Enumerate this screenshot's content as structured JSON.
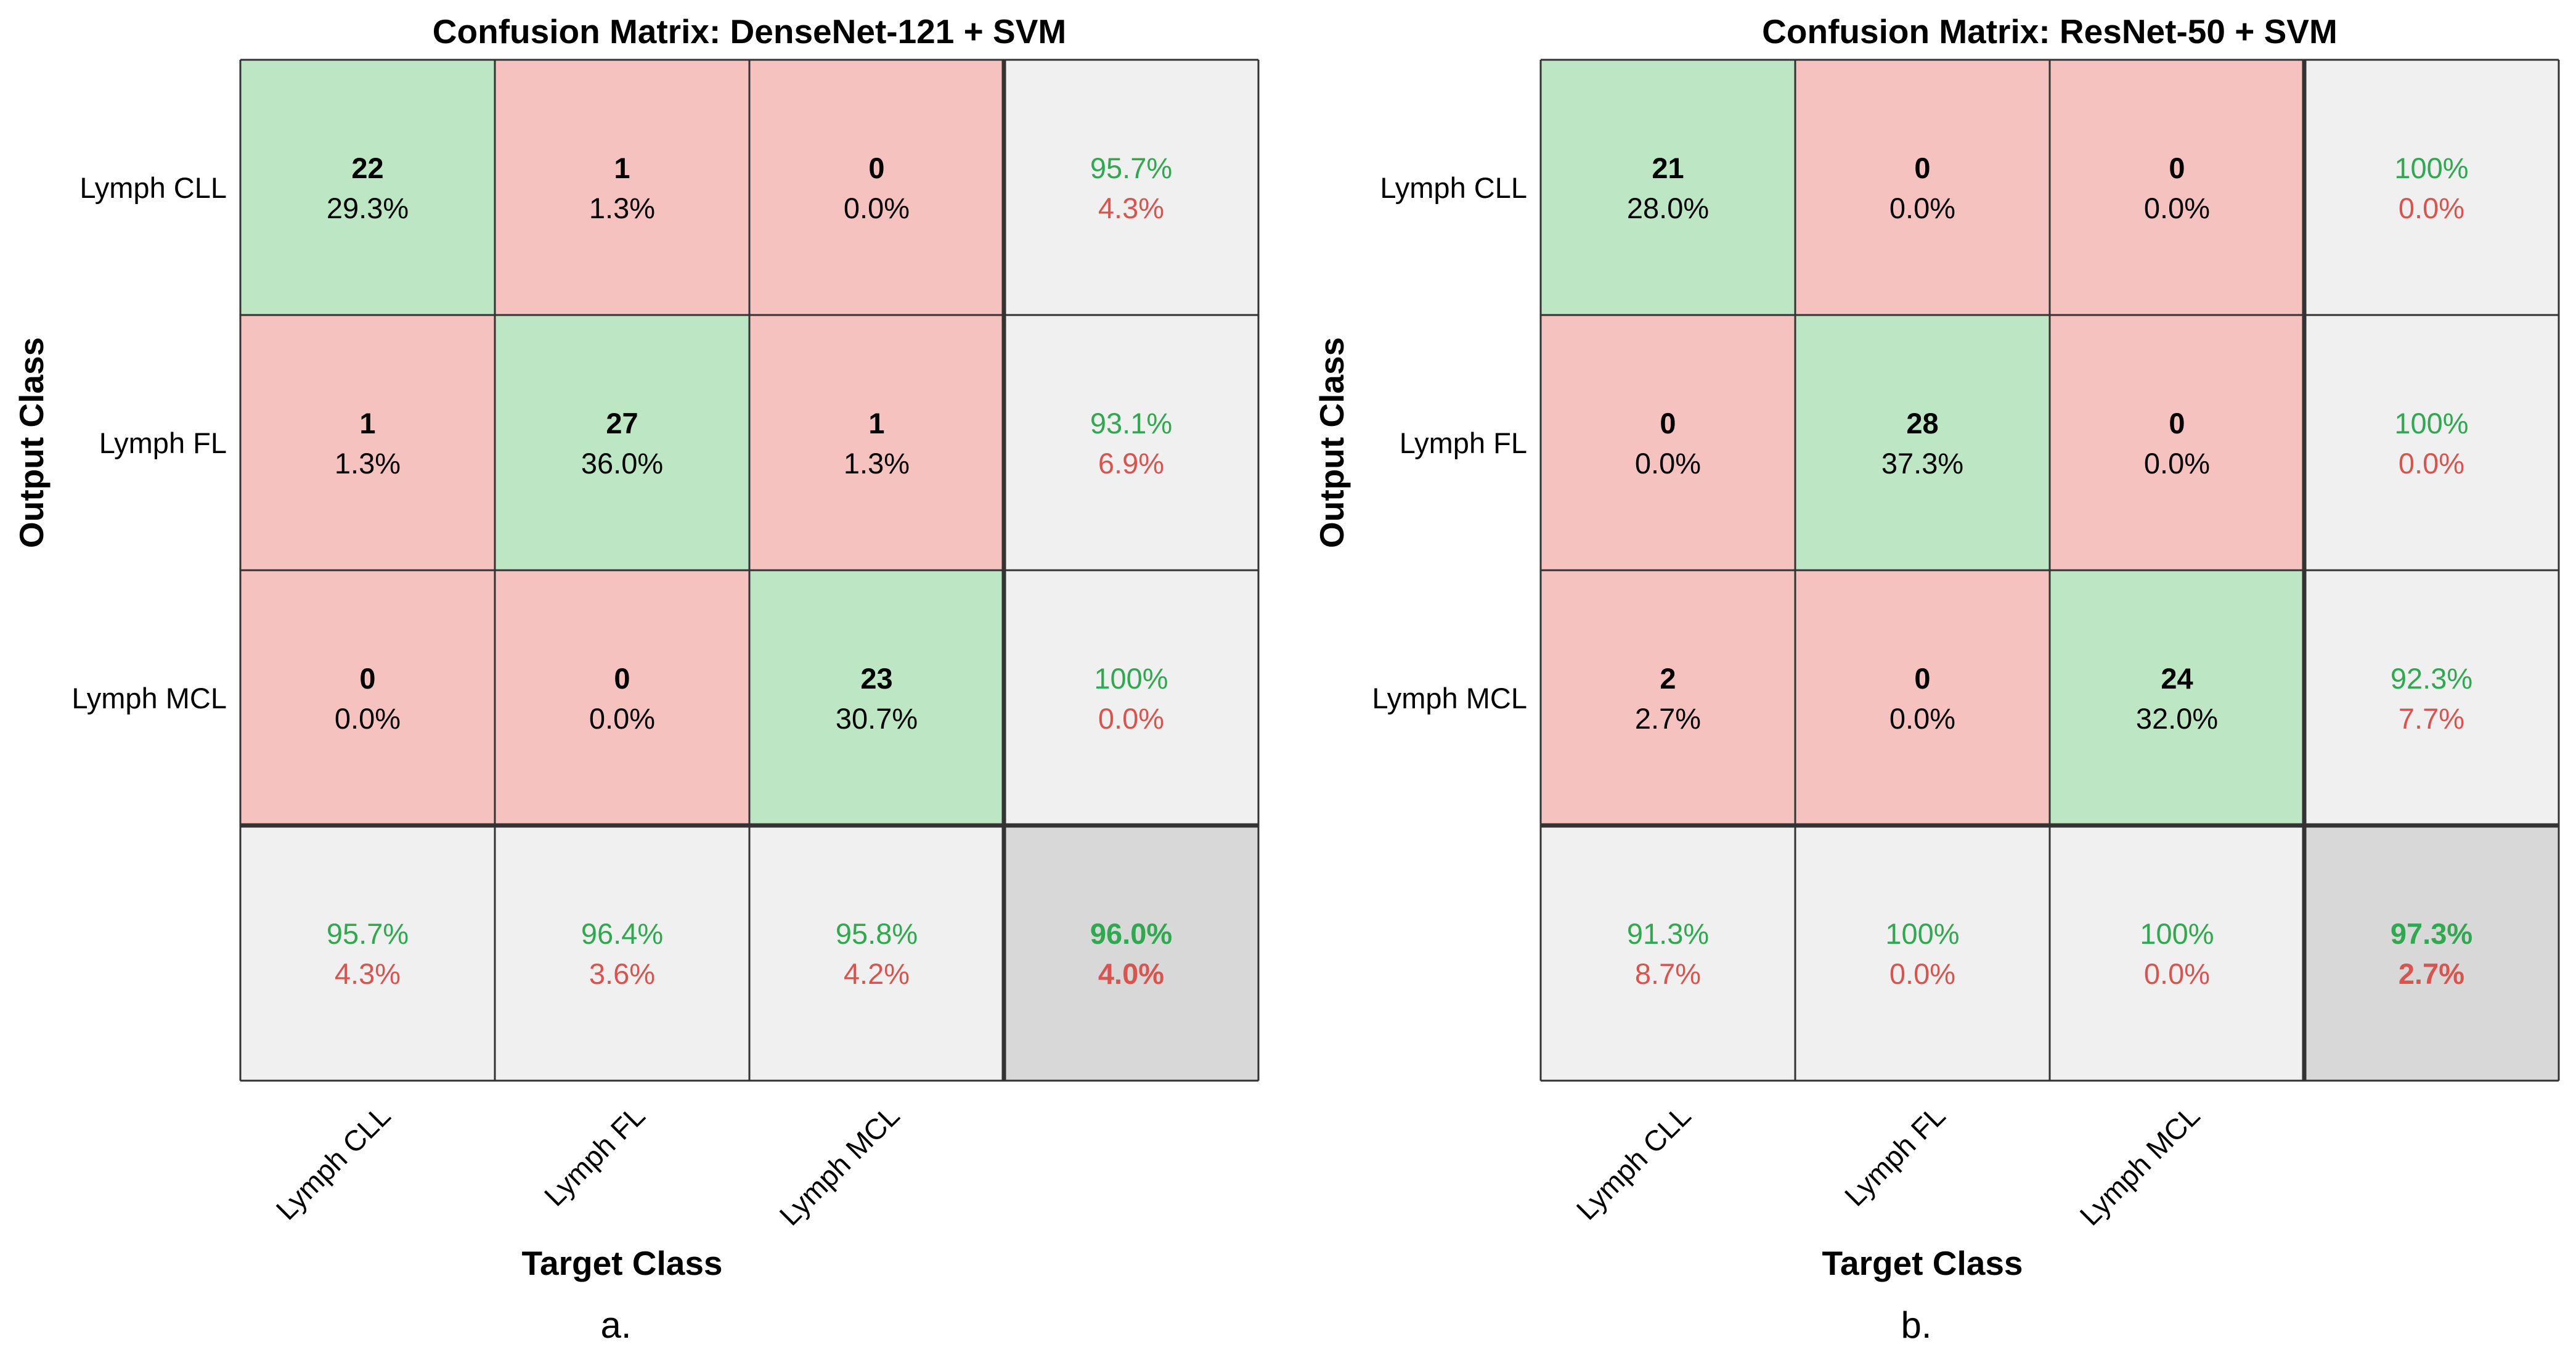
{
  "chart_data": [
    {
      "type": "heatmap",
      "panel_label": "a.",
      "title": "Confusion Matrix: DenseNet-121 + SVM",
      "xlabel": "Target Class",
      "ylabel": "Output Class",
      "classes": [
        "Lymph CLL",
        "Lymph FL",
        "Lymph MCL"
      ],
      "counts": [
        [
          22,
          1,
          0
        ],
        [
          1,
          27,
          1
        ],
        [
          0,
          0,
          23
        ]
      ],
      "percents": [
        [
          "29.3%",
          "1.3%",
          "0.0%"
        ],
        [
          "1.3%",
          "36.0%",
          "1.3%"
        ],
        [
          "0.0%",
          "0.0%",
          "30.7%"
        ]
      ],
      "row_summary": [
        [
          "95.7%",
          "4.3%"
        ],
        [
          "93.1%",
          "6.9%"
        ],
        [
          "100%",
          "0.0%"
        ]
      ],
      "col_summary": [
        [
          "95.7%",
          "4.3%"
        ],
        [
          "96.4%",
          "3.6%"
        ],
        [
          "95.8%",
          "4.2%"
        ]
      ],
      "overall": [
        "96.0%",
        "4.0%"
      ]
    },
    {
      "type": "heatmap",
      "panel_label": "b.",
      "title": "Confusion Matrix: ResNet-50 + SVM",
      "xlabel": "Target Class",
      "ylabel": "Output Class",
      "classes": [
        "Lymph CLL",
        "Lymph FL",
        "Lymph MCL"
      ],
      "counts": [
        [
          21,
          0,
          0
        ],
        [
          0,
          28,
          0
        ],
        [
          2,
          0,
          24
        ]
      ],
      "percents": [
        [
          "28.0%",
          "0.0%",
          "0.0%"
        ],
        [
          "0.0%",
          "37.3%",
          "0.0%"
        ],
        [
          "2.7%",
          "0.0%",
          "32.0%"
        ]
      ],
      "row_summary": [
        [
          "100%",
          "0.0%"
        ],
        [
          "100%",
          "0.0%"
        ],
        [
          "92.3%",
          "7.7%"
        ]
      ],
      "col_summary": [
        [
          "91.3%",
          "8.7%"
        ],
        [
          "100%",
          "0.0%"
        ],
        [
          "100%",
          "0.0%"
        ]
      ],
      "overall": [
        "97.3%",
        "2.7%"
      ]
    }
  ],
  "colors": {
    "correct": "#bde6c5",
    "incorrect": "#f6c2c0",
    "summary": "#f0f0f0",
    "overall": "#d8d8d8",
    "green_text": "#2fa84f",
    "red_text": "#d9534f",
    "grid": "#333333"
  }
}
